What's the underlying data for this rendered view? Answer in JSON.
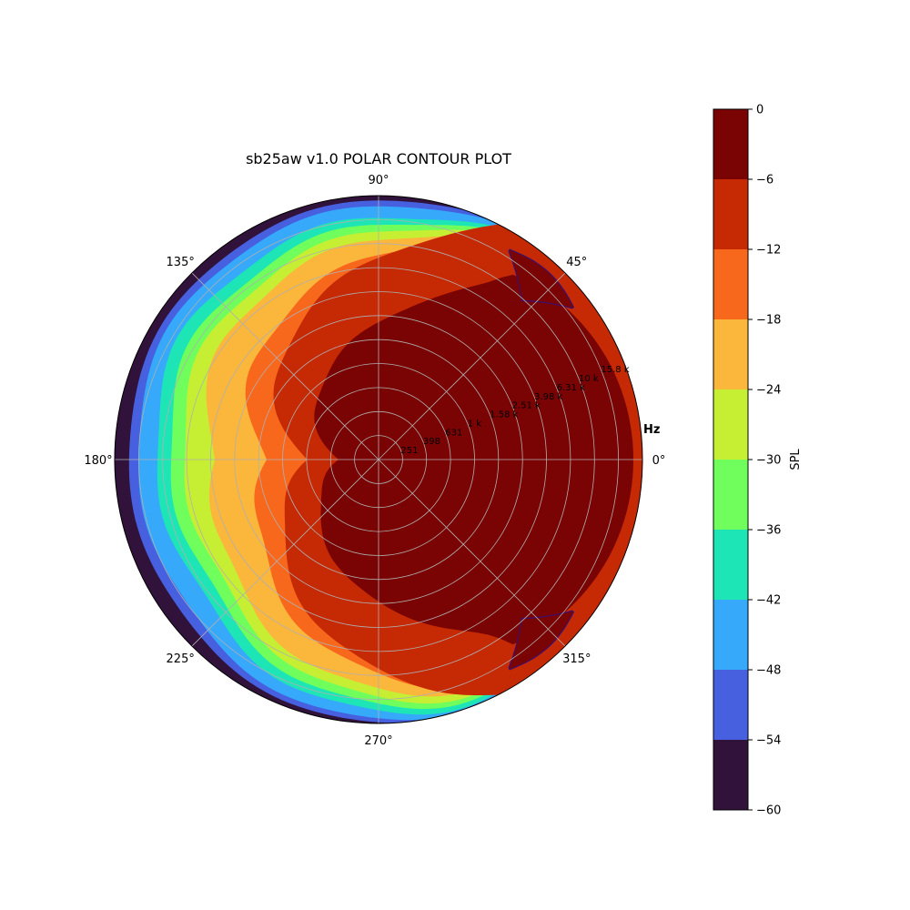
{
  "chart_data": {
    "type": "heatmap",
    "title": "sb25aw v1.0 POLAR CONTOUR PLOT",
    "angle_ticks": [
      "0°",
      "45°",
      "90°",
      "135°",
      "180°",
      "225°",
      "270°",
      "315°"
    ],
    "radial_axis_label": "Hz",
    "radial_tick_labels": [
      "251",
      "398",
      "631",
      "1 k",
      "1.58 k",
      "2.51 k",
      "3.98 k",
      "6.31 k",
      "10 k",
      "15.8 k"
    ],
    "colorbar_label": "SPL",
    "colorbar_ticks": [
      0,
      -6,
      -12,
      -18,
      -24,
      -30,
      -36,
      -42,
      -48,
      -54,
      -60
    ],
    "levels": [
      {
        "range": [
          -6,
          0
        ],
        "color": "#7a0403"
      },
      {
        "range": [
          -12,
          -6
        ],
        "color": "#c52a05"
      },
      {
        "range": [
          -18,
          -12
        ],
        "color": "#f8681c"
      },
      {
        "range": [
          -24,
          -18
        ],
        "color": "#fbb63c"
      },
      {
        "range": [
          -30,
          -24
        ],
        "color": "#c6ef34"
      },
      {
        "range": [
          -36,
          -30
        ],
        "color": "#6ffe5c"
      },
      {
        "range": [
          -42,
          -36
        ],
        "color": "#1de5b6"
      },
      {
        "range": [
          -48,
          -42
        ],
        "color": "#36a9fb"
      },
      {
        "range": [
          -54,
          -48
        ],
        "color": "#4660e0"
      },
      {
        "range": [
          -60,
          -54
        ],
        "color": "#30123b"
      }
    ],
    "grid": true,
    "colorbar_position": "right"
  }
}
